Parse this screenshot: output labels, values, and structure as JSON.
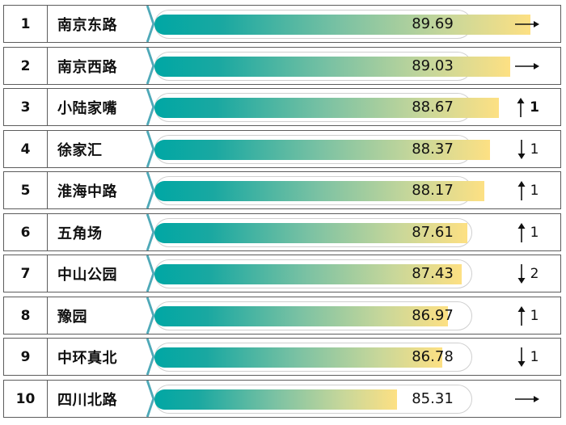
{
  "colors": {
    "border": "#5c5c5c",
    "divider": "#4fa9b8",
    "bar_start": "#00a7a4",
    "bar_end": "#fde083",
    "track_border": "#cfcfcf"
  },
  "chart_data": {
    "type": "bar",
    "orientation": "horizontal",
    "title": "",
    "xlabel": "",
    "ylabel": "",
    "xlim": [
      0,
      100
    ],
    "categories": [
      "南京东路",
      "南京西路",
      "小陆家嘴",
      "徐家汇",
      "淮海中路",
      "五角场",
      "中山公园",
      "豫园",
      "中环真北",
      "四川北路"
    ],
    "rows": [
      {
        "rank": "1",
        "name": "南京东路",
        "value": 89.69,
        "value_label": "89.69",
        "change_dir": "flat",
        "change_num": ""
      },
      {
        "rank": "2",
        "name": "南京西路",
        "value": 89.03,
        "value_label": "89.03",
        "change_dir": "flat",
        "change_num": ""
      },
      {
        "rank": "3",
        "name": "小陆家嘴",
        "value": 88.67,
        "value_label": "88.67",
        "change_dir": "up",
        "change_num": "1"
      },
      {
        "rank": "4",
        "name": "徐家汇",
        "value": 88.37,
        "value_label": "88.37",
        "change_dir": "down",
        "change_num": "1"
      },
      {
        "rank": "5",
        "name": "淮海中路",
        "value": 88.17,
        "value_label": "88.17",
        "change_dir": "up",
        "change_num": "1"
      },
      {
        "rank": "6",
        "name": "五角场",
        "value": 87.61,
        "value_label": "87.61",
        "change_dir": "up",
        "change_num": "1"
      },
      {
        "rank": "7",
        "name": "中山公园",
        "value": 87.43,
        "value_label": "87.43",
        "change_dir": "down",
        "change_num": "2"
      },
      {
        "rank": "8",
        "name": "豫园",
        "value": 86.97,
        "value_label": "86.97",
        "change_dir": "up",
        "change_num": "1"
      },
      {
        "rank": "9",
        "name": "中环真北",
        "value": 86.78,
        "value_label": "86.78",
        "change_dir": "down",
        "change_num": "1"
      },
      {
        "rank": "10",
        "name": "四川北路",
        "value": 85.31,
        "value_label": "85.31",
        "change_dir": "flat",
        "change_num": ""
      }
    ]
  }
}
